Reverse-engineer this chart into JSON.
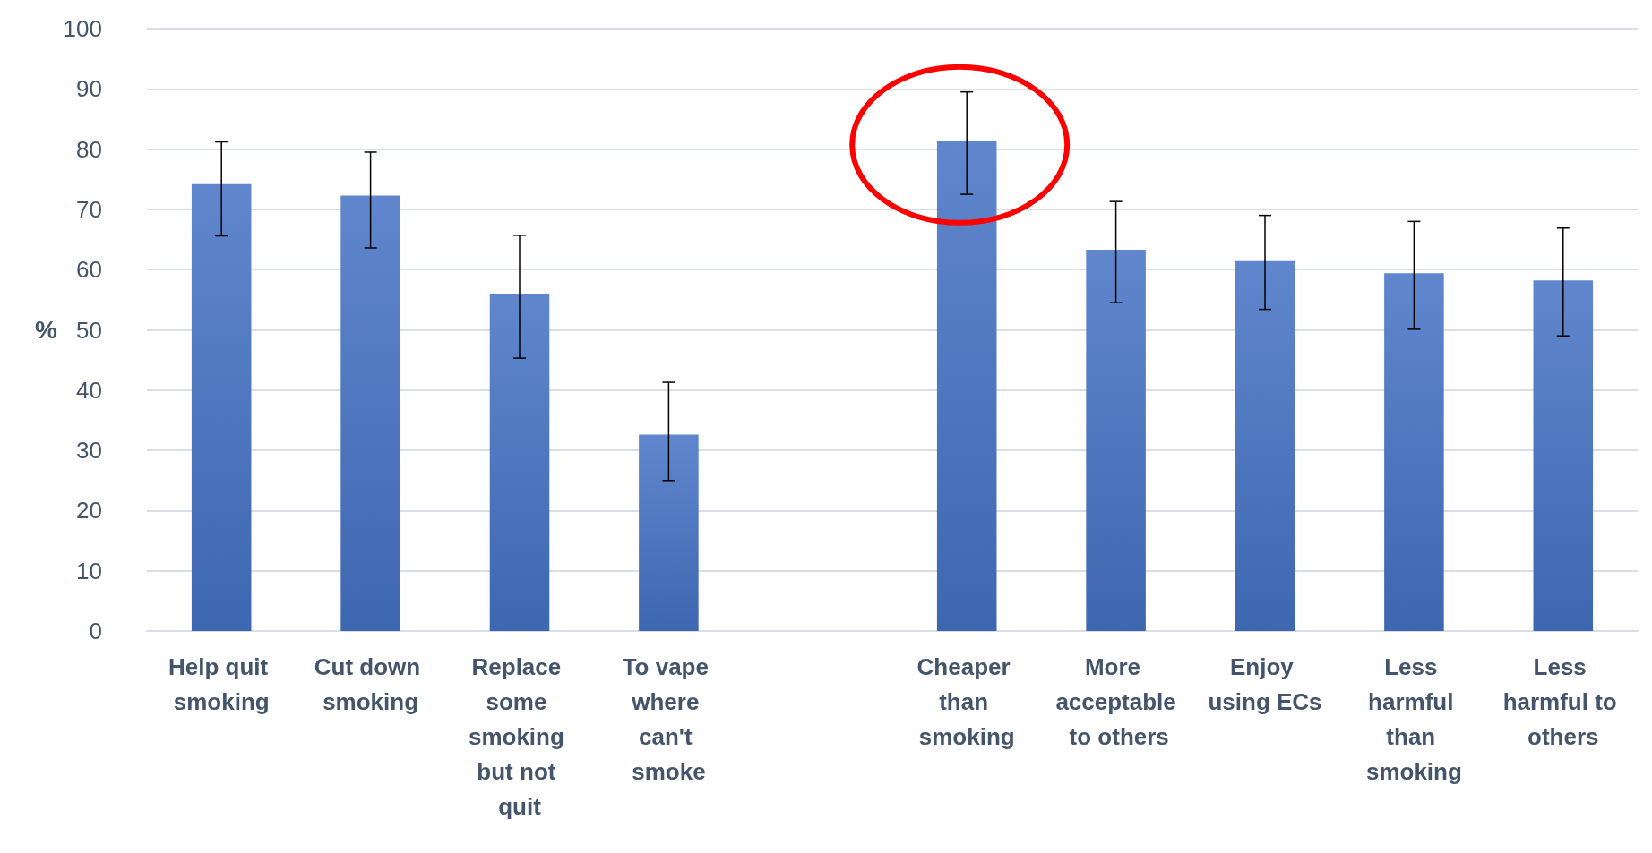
{
  "chart_data": {
    "type": "bar",
    "ylabel": "%",
    "categories": [
      "Help quit smoking",
      "Cut down smoking",
      "Replace some smoking but not quit",
      "To vape where can't smoke",
      null,
      "Cheaper than smoking",
      "More acceptable to others",
      "Enjoy using ECs",
      "Less harmful than smoking",
      "Less harmful to others"
    ],
    "values": [
      74.2,
      72.3,
      55.9,
      32.6,
      null,
      81.3,
      63.3,
      61.4,
      59.4,
      58.2
    ],
    "errors": [
      [
        65.6,
        81.2
      ],
      [
        63.6,
        79.5
      ],
      [
        45.3,
        65.7
      ],
      [
        25,
        41.3
      ],
      null,
      [
        72.5,
        89.5
      ],
      [
        54.5,
        71.3
      ],
      [
        53.4,
        69
      ],
      [
        50.1,
        68
      ],
      [
        49,
        66.9
      ]
    ],
    "color": "#4472c4",
    "ylim": [
      0,
      100
    ],
    "yticks": [
      0,
      10,
      20,
      30,
      40,
      50,
      60,
      70,
      80,
      90,
      100
    ],
    "grid": "y"
  }
}
